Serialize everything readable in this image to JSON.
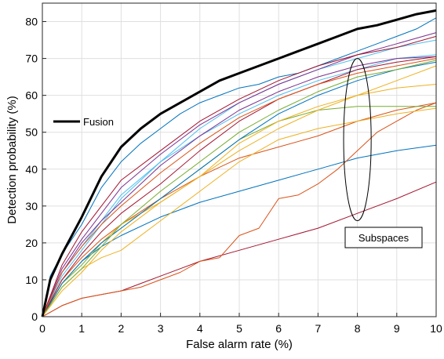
{
  "chart_data": {
    "type": "line",
    "title": "",
    "xlabel": "False alarm rate (%)",
    "ylabel": "Detection probability (%)",
    "xlim": [
      0,
      10
    ],
    "ylim": [
      0,
      85
    ],
    "xticks": [
      0,
      1,
      2,
      3,
      4,
      5,
      6,
      7,
      8,
      9,
      10
    ],
    "yticks": [
      0,
      10,
      20,
      30,
      40,
      50,
      60,
      70,
      80
    ],
    "grid": true,
    "legend": {
      "placement": "middle-left",
      "entries": [
        {
          "name": "Fusion",
          "color": "#000000"
        }
      ]
    },
    "annotations": [
      {
        "text": "Subspaces",
        "points_to": "ellipse",
        "ellipse_center": [
          8,
          48
        ],
        "ellipse_x_radius": 0.35,
        "ellipse_y_radius": 22
      }
    ],
    "series": [
      {
        "name": "Fusion",
        "color": "#000000",
        "width": 3,
        "x": [
          0,
          0.2,
          0.5,
          1,
          1.5,
          2,
          2.5,
          3,
          3.5,
          4,
          4.5,
          5,
          5.5,
          6,
          6.5,
          7,
          7.5,
          8,
          8.5,
          9,
          9.5,
          10
        ],
        "y": [
          0,
          10,
          17,
          27,
          38,
          46,
          51,
          55,
          58,
          61,
          64,
          66,
          68,
          70,
          72,
          74,
          76,
          78,
          79,
          80.5,
          82,
          83
        ]
      },
      {
        "color": "#0072BD",
        "x": [
          0,
          0.2,
          0.5,
          1,
          1.5,
          2,
          2.5,
          3,
          3.5,
          4,
          4.5,
          5,
          5.5,
          6,
          6.5,
          7,
          7.5,
          8,
          8.5,
          9,
          9.5,
          10
        ],
        "y": [
          0,
          11,
          17,
          25,
          35,
          42,
          47,
          51,
          55,
          58,
          60,
          62,
          63,
          65,
          66,
          68,
          70,
          72,
          74,
          76,
          78,
          81
        ]
      },
      {
        "color": "#0072BD",
        "x": [
          0,
          0.5,
          1,
          1.5,
          2,
          3,
          4,
          5,
          6,
          7,
          8,
          9,
          10
        ],
        "y": [
          0,
          9,
          15,
          19,
          22,
          27,
          31,
          34,
          37,
          40,
          43,
          45,
          46.5
        ]
      },
      {
        "color": "#A2142F",
        "x": [
          0,
          0.5,
          1,
          1.5,
          2,
          2.5,
          3,
          3.5,
          4,
          5,
          6,
          7,
          8,
          9,
          10
        ],
        "y": [
          0,
          3,
          5,
          6,
          7,
          9,
          11,
          13,
          15,
          18,
          21,
          24,
          28,
          32,
          36.5
        ]
      },
      {
        "color": "#D95319",
        "x": [
          0,
          0.5,
          1,
          1.5,
          2,
          2.5,
          3,
          3.5,
          4,
          4.5,
          5,
          5.5,
          6,
          6.5,
          7,
          7.5,
          8,
          8.5,
          9,
          9.5,
          10
        ],
        "y": [
          0,
          3,
          5,
          6,
          7,
          8,
          10,
          12,
          15,
          16,
          22,
          24,
          32,
          33,
          36,
          40,
          45,
          50,
          53,
          56,
          58
        ]
      },
      {
        "color": "#D95319",
        "x": [
          0,
          0.5,
          1,
          1.5,
          2,
          3,
          4,
          5,
          6,
          7,
          8,
          9,
          10
        ],
        "y": [
          0,
          10,
          16,
          21,
          25,
          32,
          38,
          43,
          46,
          49,
          53,
          56,
          58
        ]
      },
      {
        "color": "#77AC30",
        "x": [
          0,
          0.5,
          1,
          1.5,
          2,
          3,
          4,
          5,
          6,
          7,
          8,
          9,
          10
        ],
        "y": [
          0,
          9,
          14,
          20,
          24,
          32,
          40,
          48,
          53,
          56,
          57,
          57,
          57
        ]
      },
      {
        "color": "#EDB120",
        "x": [
          0,
          0.5,
          1,
          1.5,
          2,
          3,
          4,
          5,
          6,
          7,
          8,
          9,
          10
        ],
        "y": [
          0,
          8,
          13,
          16,
          18,
          26,
          34,
          42,
          48,
          51,
          53,
          55,
          56.5
        ]
      },
      {
        "color": "#EDB120",
        "x": [
          0,
          0.5,
          1,
          1.5,
          2,
          3,
          4,
          5,
          6,
          7,
          8,
          9,
          10
        ],
        "y": [
          0,
          9,
          15,
          20,
          25,
          31,
          38,
          47,
          53,
          57,
          60,
          64,
          68
        ]
      },
      {
        "color": "#4DBEEE",
        "x": [
          0,
          0.5,
          1,
          1.5,
          2,
          3,
          4,
          5,
          6,
          7,
          8,
          9,
          10
        ],
        "y": [
          0,
          12,
          19,
          26,
          33,
          42,
          49,
          55,
          60,
          64,
          67,
          70,
          71
        ]
      },
      {
        "color": "#4DBEEE",
        "x": [
          0,
          0.5,
          1,
          1.5,
          2,
          3,
          4,
          5,
          6,
          7,
          8,
          9,
          10
        ],
        "y": [
          0,
          11,
          18,
          25,
          32,
          42,
          51,
          58,
          63,
          67,
          70,
          73,
          75
        ]
      },
      {
        "color": "#7E2F8E",
        "x": [
          0,
          0.5,
          1,
          1.5,
          2,
          3,
          4,
          5,
          6,
          7,
          8,
          9,
          10
        ],
        "y": [
          0,
          13,
          21,
          28,
          35,
          44,
          52,
          58,
          63,
          67,
          71,
          74,
          77
        ]
      },
      {
        "color": "#7E2F8E",
        "x": [
          0,
          0.5,
          1,
          1.5,
          2,
          3,
          4,
          5,
          6,
          7,
          8,
          9,
          10
        ],
        "y": [
          0,
          12,
          20,
          26,
          31,
          41,
          49,
          56,
          61,
          65,
          68,
          70,
          70.5
        ]
      },
      {
        "color": "#A2142F",
        "x": [
          0,
          0.5,
          1,
          1.5,
          2,
          3,
          4,
          5,
          6,
          7,
          8,
          9,
          10
        ],
        "y": [
          0,
          14,
          23,
          30,
          37,
          45,
          53,
          59,
          64,
          68,
          71,
          73,
          76
        ]
      },
      {
        "color": "#A2142F",
        "x": [
          0,
          0.5,
          1,
          1.5,
          2,
          3,
          4,
          5,
          6,
          7,
          8,
          9,
          10
        ],
        "y": [
          0,
          10,
          17,
          23,
          28,
          36,
          45,
          53,
          59,
          63,
          67,
          69,
          70.5
        ]
      },
      {
        "color": "#0072BD",
        "x": [
          0,
          0.5,
          1,
          1.5,
          2,
          3,
          4,
          5,
          6,
          7,
          8,
          9,
          10
        ],
        "y": [
          0,
          9,
          15,
          20,
          24,
          32,
          40,
          48,
          55,
          60,
          64,
          67,
          69
        ]
      },
      {
        "color": "#77AC30",
        "x": [
          0,
          0.5,
          1,
          1.5,
          2,
          3,
          4,
          5,
          6,
          7,
          8,
          9,
          10
        ],
        "y": [
          0,
          8,
          13,
          19,
          25,
          34,
          42,
          50,
          56,
          61,
          65,
          67,
          69.5
        ]
      },
      {
        "color": "#EDB120",
        "x": [
          0,
          0.5,
          1,
          1.5,
          2,
          3,
          4,
          5,
          6,
          7,
          8,
          9,
          10
        ],
        "y": [
          0,
          7,
          12,
          18,
          23,
          31,
          38,
          45,
          51,
          56,
          60,
          62,
          63
        ]
      },
      {
        "color": "#D95319",
        "x": [
          0,
          0.5,
          1,
          1.5,
          2,
          3,
          4,
          5,
          6,
          7,
          8,
          9,
          10
        ],
        "y": [
          0,
          12,
          19,
          25,
          30,
          39,
          47,
          54,
          59,
          63,
          66,
          68,
          70
        ]
      }
    ]
  }
}
